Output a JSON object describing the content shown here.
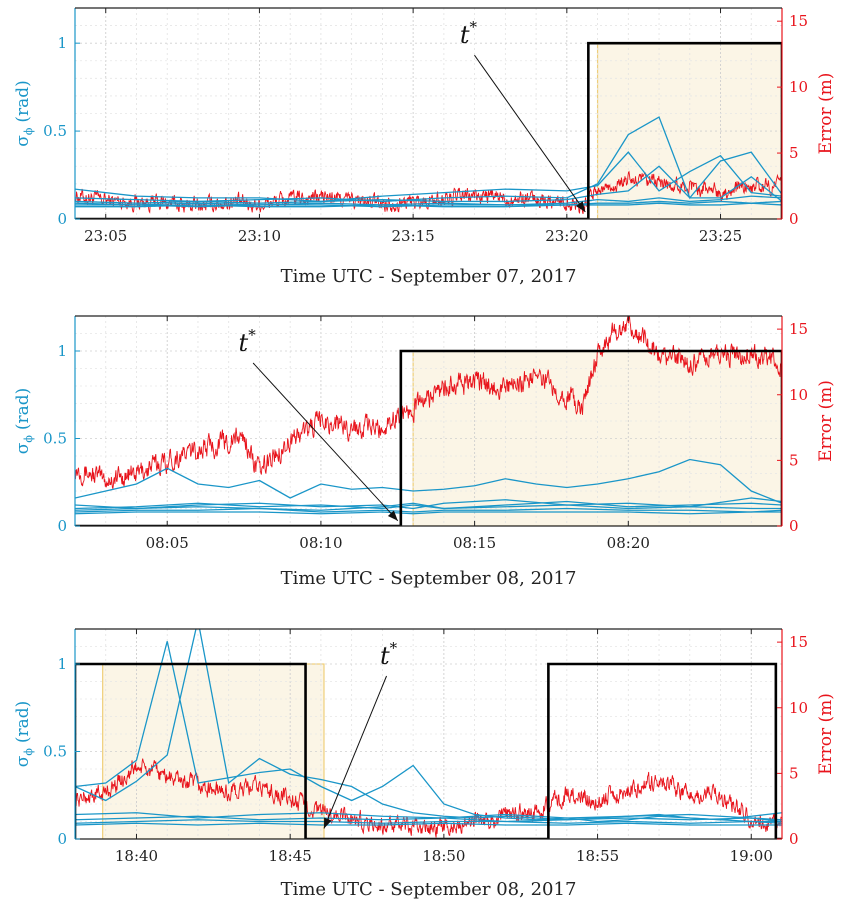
{
  "chart_data": [
    {
      "type": "line",
      "xlabel": "Time UTC - September 07, 2017",
      "ylabel_left": "σ",
      "ylabel_left_sub": "ϕ",
      "ylabel_left_unit": "(rad)",
      "ylabel_right": "Error (m)",
      "x_unit": "minutes",
      "xlim": [
        1384,
        1407
      ],
      "ylim_left": [
        0,
        1.2
      ],
      "ylim_right": [
        0,
        16
      ],
      "x_ticks": [
        1385,
        1390,
        1395,
        1400,
        1405
      ],
      "x_tick_labels": [
        "23:05",
        "23:10",
        "23:15",
        "23:20",
        "23:25"
      ],
      "y_ticks_left": [
        0,
        0.5,
        1
      ],
      "y_tick_labels_left": [
        "0",
        "0.5",
        "1"
      ],
      "y_ticks_right": [
        0,
        5,
        10,
        15
      ],
      "y_tick_labels_right": [
        "0",
        "5",
        "10",
        "15"
      ],
      "grid": true,
      "annotation": {
        "text": "t",
        "sup": "*",
        "label_at": [
          1396.8,
          1.0
        ],
        "arrow_to": [
          1400.6,
          0.04
        ]
      },
      "flag_step": {
        "segments": [
          [
            1400.7,
            1407
          ]
        ],
        "value": 1.0
      },
      "shaded_region": [
        1401,
        1407
      ],
      "colors": {
        "sigma": "#1a96c8",
        "error": "#e8141c",
        "flag": "#000000",
        "shade": "#fbf5e6",
        "shade_edge": "#efcf7a"
      },
      "error_series": {
        "x": [
          1384,
          1385,
          1386,
          1387,
          1388,
          1389,
          1390,
          1391,
          1392,
          1393,
          1394,
          1395,
          1396,
          1397,
          1398,
          1399,
          1400,
          1400.5,
          1401,
          1402,
          1403,
          1404,
          1405,
          1406,
          1407
        ],
        "values": [
          1.8,
          1.4,
          1.3,
          1.2,
          1.0,
          1.3,
          1.1,
          1.5,
          1.7,
          1.4,
          1.2,
          1.3,
          1.5,
          1.8,
          1.6,
          1.5,
          1.3,
          1.0,
          2.2,
          2.9,
          2.7,
          2.5,
          2.1,
          2.4,
          2.6
        ],
        "noise": 0.45
      },
      "sigma_series": [
        {
          "x": [
            1384,
            1386,
            1388,
            1390,
            1392,
            1394,
            1396,
            1398,
            1400,
            1401,
            1402,
            1403,
            1404,
            1405,
            1406,
            1407
          ],
          "values": [
            0.17,
            0.13,
            0.12,
            0.12,
            0.1,
            0.13,
            0.15,
            0.17,
            0.16,
            0.19,
            0.38,
            0.16,
            0.27,
            0.36,
            0.15,
            0.13
          ]
        },
        {
          "x": [
            1384,
            1386,
            1388,
            1390,
            1392,
            1394,
            1396,
            1398,
            1400,
            1401,
            1402,
            1403,
            1404,
            1405,
            1406,
            1407
          ],
          "values": [
            0.12,
            0.11,
            0.1,
            0.11,
            0.12,
            0.1,
            0.12,
            0.13,
            0.12,
            0.2,
            0.48,
            0.58,
            0.12,
            0.33,
            0.38,
            0.14
          ]
        },
        {
          "x": [
            1384,
            1386,
            1388,
            1390,
            1392,
            1394,
            1396,
            1398,
            1400,
            1401,
            1402,
            1403,
            1404,
            1405,
            1406,
            1407
          ],
          "values": [
            0.1,
            0.09,
            0.1,
            0.09,
            0.1,
            0.11,
            0.1,
            0.1,
            0.11,
            0.14,
            0.16,
            0.3,
            0.12,
            0.12,
            0.24,
            0.1
          ]
        },
        {
          "x": [
            1384,
            1386,
            1388,
            1390,
            1392,
            1394,
            1396,
            1398,
            1400,
            1401,
            1402,
            1403,
            1404,
            1405,
            1406,
            1407
          ],
          "values": [
            0.09,
            0.08,
            0.09,
            0.08,
            0.09,
            0.08,
            0.09,
            0.08,
            0.09,
            0.11,
            0.1,
            0.12,
            0.1,
            0.11,
            0.13,
            0.12
          ]
        },
        {
          "x": [
            1384,
            1386,
            1388,
            1390,
            1392,
            1394,
            1396,
            1398,
            1400,
            1401,
            1402,
            1403,
            1404,
            1405,
            1406,
            1407
          ],
          "values": [
            0.08,
            0.08,
            0.07,
            0.08,
            0.08,
            0.07,
            0.08,
            0.08,
            0.08,
            0.09,
            0.09,
            0.1,
            0.09,
            0.1,
            0.09,
            0.1
          ]
        },
        {
          "x": [
            1384,
            1386,
            1388,
            1390,
            1392,
            1394,
            1396,
            1398,
            1400,
            1401,
            1402,
            1403,
            1404,
            1405,
            1406,
            1407
          ],
          "values": [
            0.07,
            0.07,
            0.08,
            0.07,
            0.07,
            0.08,
            0.07,
            0.07,
            0.08,
            0.08,
            0.08,
            0.09,
            0.08,
            0.08,
            0.09,
            0.08
          ]
        }
      ]
    },
    {
      "type": "line",
      "xlabel": "Time UTC - September 08, 2017",
      "ylabel_left": "σ",
      "ylabel_left_sub": "ϕ",
      "ylabel_left_unit": "(rad)",
      "ylabel_right": "Error (m)",
      "x_unit": "minutes",
      "xlim": [
        482,
        505
      ],
      "ylim_left": [
        0,
        1.2
      ],
      "ylim_right": [
        0,
        16
      ],
      "x_ticks": [
        485,
        490,
        495,
        500
      ],
      "x_tick_labels": [
        "08:05",
        "08:10",
        "08:15",
        "08:20"
      ],
      "y_ticks_left": [
        0,
        0.5,
        1
      ],
      "y_tick_labels_left": [
        "0",
        "0.5",
        "1"
      ],
      "y_ticks_right": [
        0,
        5,
        10,
        15
      ],
      "y_tick_labels_right": [
        "0",
        "5",
        "10",
        "15"
      ],
      "grid": true,
      "annotation": {
        "text": "t",
        "sup": "*",
        "label_at": [
          487.6,
          1.0
        ],
        "arrow_to": [
          492.5,
          0.03
        ]
      },
      "flag_step": {
        "segments": [
          [
            492.6,
            505
          ]
        ],
        "value": 1.0
      },
      "shaded_region": [
        493,
        505
      ],
      "colors": {
        "sigma": "#1a96c8",
        "error": "#e8141c",
        "flag": "#000000",
        "shade": "#fbf5e6",
        "shade_edge": "#efcf7a"
      },
      "error_series": {
        "x": [
          482,
          483,
          484,
          485,
          486,
          487,
          487.5,
          488,
          488.5,
          489,
          490,
          491,
          492,
          492.5,
          493,
          494,
          495,
          496,
          497,
          498,
          498.5,
          499,
          499.5,
          500,
          501,
          502,
          503,
          504,
          505
        ],
        "values": [
          4.5,
          3.5,
          4.0,
          5.0,
          5.8,
          6.5,
          6.8,
          4.0,
          5.5,
          6.5,
          8.0,
          7.5,
          7.5,
          8.5,
          9.0,
          10.5,
          11.0,
          10.5,
          11.5,
          10.0,
          9.0,
          13.0,
          14.5,
          15.5,
          13.0,
          12.5,
          13.0,
          13.0,
          12.5
        ],
        "noise": 0.6
      },
      "sigma_series": [
        {
          "x": [
            482,
            484,
            485,
            486,
            487,
            488,
            489,
            490,
            491,
            492,
            493,
            494,
            495,
            496,
            497,
            498,
            499,
            500,
            501,
            502,
            503,
            504,
            505
          ],
          "values": [
            0.16,
            0.24,
            0.33,
            0.24,
            0.22,
            0.26,
            0.16,
            0.24,
            0.21,
            0.22,
            0.2,
            0.21,
            0.23,
            0.27,
            0.24,
            0.22,
            0.24,
            0.27,
            0.31,
            0.38,
            0.35,
            0.2,
            0.13
          ]
        },
        {
          "x": [
            482,
            484,
            486,
            488,
            490,
            492,
            493,
            494,
            496,
            498,
            500,
            502,
            504,
            505
          ],
          "values": [
            0.12,
            0.1,
            0.12,
            0.13,
            0.11,
            0.12,
            0.1,
            0.13,
            0.15,
            0.12,
            0.13,
            0.11,
            0.16,
            0.14
          ]
        },
        {
          "x": [
            482,
            484,
            486,
            488,
            490,
            492,
            493,
            494,
            496,
            498,
            500,
            502,
            504,
            505
          ],
          "values": [
            0.1,
            0.11,
            0.13,
            0.11,
            0.12,
            0.1,
            0.12,
            0.1,
            0.12,
            0.14,
            0.11,
            0.12,
            0.13,
            0.12
          ]
        },
        {
          "x": [
            482,
            484,
            486,
            488,
            490,
            492,
            493,
            494,
            496,
            498,
            500,
            502,
            504,
            505
          ],
          "values": [
            0.09,
            0.1,
            0.11,
            0.1,
            0.09,
            0.11,
            0.13,
            0.1,
            0.11,
            0.12,
            0.1,
            0.11,
            0.1,
            0.1
          ]
        },
        {
          "x": [
            482,
            484,
            486,
            488,
            490,
            492,
            493,
            494,
            496,
            498,
            500,
            502,
            504,
            505
          ],
          "values": [
            0.08,
            0.09,
            0.09,
            0.1,
            0.08,
            0.09,
            0.08,
            0.09,
            0.09,
            0.1,
            0.09,
            0.09,
            0.08,
            0.09
          ]
        },
        {
          "x": [
            482,
            484,
            486,
            488,
            490,
            492,
            493,
            494,
            496,
            498,
            500,
            502,
            504,
            505
          ],
          "values": [
            0.07,
            0.08,
            0.08,
            0.08,
            0.07,
            0.08,
            0.07,
            0.08,
            0.08,
            0.08,
            0.08,
            0.07,
            0.08,
            0.08
          ]
        }
      ]
    },
    {
      "type": "line",
      "xlabel": "Time UTC - September 08, 2017",
      "ylabel_left": "σ",
      "ylabel_left_sub": "ϕ",
      "ylabel_left_unit": "(rad)",
      "ylabel_right": "Error (m)",
      "x_unit": "minutes",
      "xlim": [
        1118,
        1141
      ],
      "ylim_left": [
        0,
        1.2
      ],
      "ylim_right": [
        0,
        16
      ],
      "x_ticks": [
        1120,
        1125,
        1130,
        1135,
        1140
      ],
      "x_tick_labels": [
        "18:40",
        "18:45",
        "18:50",
        "18:55",
        "19:00"
      ],
      "y_ticks_left": [
        0,
        0.5,
        1
      ],
      "y_tick_labels_left": [
        "0",
        "0.5",
        "1"
      ],
      "y_ticks_right": [
        0,
        5,
        10,
        15
      ],
      "y_tick_labels_right": [
        "0",
        "5",
        "10",
        "15"
      ],
      "grid": true,
      "annotation": {
        "text": "t",
        "sup": "*",
        "label_at": [
          1128.2,
          1.0
        ],
        "arrow_to": [
          1126.1,
          0.06
        ]
      },
      "flag_step": {
        "segments": [
          [
            1118,
            1125.5
          ],
          [
            1133.4,
            1140.8
          ]
        ],
        "value": 1.0
      },
      "shaded_region": [
        1118.9,
        1126.1
      ],
      "colors": {
        "sigma": "#1a96c8",
        "error": "#e8141c",
        "flag": "#000000",
        "shade": "#fbf5e6",
        "shade_edge": "#efcf7a"
      },
      "error_series": {
        "x": [
          1118,
          1119,
          1120,
          1121,
          1122,
          1123,
          1124,
          1125,
          1126,
          1127,
          1128,
          1129,
          1130,
          1131,
          1132,
          1133,
          1134,
          1135,
          1136,
          1137,
          1138,
          1139,
          1140,
          1141
        ],
        "values": [
          3.0,
          3.5,
          5.5,
          4.8,
          4.0,
          3.5,
          4.0,
          3.0,
          2.0,
          1.5,
          1.0,
          0.8,
          1.0,
          1.3,
          1.8,
          2.0,
          3.5,
          3.0,
          3.8,
          4.5,
          3.5,
          3.3,
          1.5,
          0.9
        ],
        "noise": 0.5
      },
      "sigma_series": [
        {
          "x": [
            1118,
            1119,
            1120,
            1121,
            1122,
            1123,
            1124,
            1125,
            1126,
            1127,
            1128,
            1129,
            1130,
            1131,
            1132,
            1133,
            1134,
            1135,
            1136,
            1137,
            1138,
            1139,
            1140,
            1141
          ],
          "values": [
            0.3,
            0.32,
            0.45,
            1.13,
            0.32,
            0.35,
            0.38,
            0.4,
            0.3,
            0.22,
            0.3,
            0.42,
            0.2,
            0.14,
            0.12,
            0.11,
            0.12,
            0.1,
            0.11,
            0.13,
            0.12,
            0.11,
            0.1,
            0.1
          ]
        },
        {
          "x": [
            1118,
            1119,
            1120,
            1121,
            1122,
            1123,
            1124,
            1125,
            1126,
            1127,
            1128,
            1129,
            1130,
            1131,
            1132,
            1133,
            1134,
            1135,
            1136,
            1137,
            1138,
            1139,
            1140,
            1141
          ],
          "values": [
            0.3,
            0.22,
            0.33,
            0.48,
            1.25,
            0.32,
            0.46,
            0.37,
            0.34,
            0.3,
            0.2,
            0.15,
            0.13,
            0.12,
            0.13,
            0.12,
            0.11,
            0.12,
            0.13,
            0.14,
            0.12,
            0.11,
            0.13,
            0.15
          ]
        },
        {
          "x": [
            1118,
            1120,
            1122,
            1124,
            1126,
            1128,
            1130,
            1132,
            1134,
            1136,
            1138,
            1140,
            1141
          ],
          "values": [
            0.14,
            0.15,
            0.12,
            0.14,
            0.15,
            0.13,
            0.12,
            0.14,
            0.12,
            0.13,
            0.14,
            0.12,
            0.11
          ]
        },
        {
          "x": [
            1118,
            1120,
            1122,
            1124,
            1126,
            1128,
            1130,
            1132,
            1134,
            1136,
            1138,
            1140,
            1141
          ],
          "values": [
            0.11,
            0.12,
            0.13,
            0.11,
            0.12,
            0.11,
            0.12,
            0.1,
            0.11,
            0.12,
            0.11,
            0.12,
            0.1
          ]
        },
        {
          "x": [
            1118,
            1120,
            1122,
            1124,
            1126,
            1128,
            1130,
            1132,
            1134,
            1136,
            1138,
            1140,
            1141
          ],
          "values": [
            0.09,
            0.1,
            0.11,
            0.1,
            0.1,
            0.09,
            0.1,
            0.1,
            0.09,
            0.1,
            0.09,
            0.1,
            0.09
          ]
        },
        {
          "x": [
            1118,
            1120,
            1122,
            1124,
            1126,
            1128,
            1130,
            1132,
            1134,
            1136,
            1138,
            1140,
            1141
          ],
          "values": [
            0.08,
            0.09,
            0.08,
            0.09,
            0.08,
            0.08,
            0.09,
            0.08,
            0.08,
            0.09,
            0.08,
            0.08,
            0.08
          ]
        }
      ]
    }
  ]
}
